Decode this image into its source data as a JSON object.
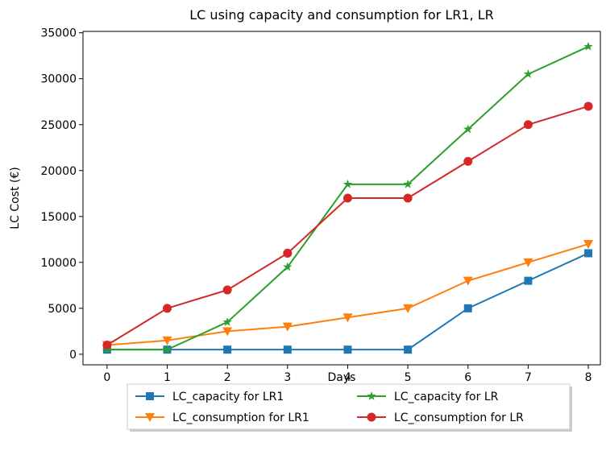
{
  "chart_data": {
    "type": "line",
    "title": "LC using capacity and consumption for LR1, LR",
    "x_label": "Days",
    "y_label": "LC Cost (€)",
    "x": [
      0,
      1,
      2,
      3,
      4,
      5,
      6,
      7,
      8
    ],
    "series": [
      {
        "name": "LC_capacity for LR1",
        "color": "#1f77b4",
        "marker": "square",
        "values": [
          500,
          500,
          500,
          500,
          500,
          500,
          5000,
          8000,
          11000
        ]
      },
      {
        "name": "LC_consumption for LR1",
        "color": "#ff7f0e",
        "marker": "triangle-down",
        "values": [
          1000,
          1500,
          2500,
          3000,
          4000,
          5000,
          8000,
          10000,
          12000
        ]
      },
      {
        "name": "LC_capacity for LR",
        "color": "#2ca02c",
        "marker": "star",
        "values": [
          500,
          500,
          3500,
          9500,
          18500,
          18500,
          24500,
          30500,
          33500
        ]
      },
      {
        "name": "LC_consumption for LR",
        "color": "#d62728",
        "marker": "circle",
        "values": [
          1000,
          5000,
          7000,
          11000,
          17000,
          17000,
          21000,
          25000,
          27000
        ]
      }
    ],
    "xlim": [
      -0.4,
      8.2
    ],
    "xticks": [
      0,
      1,
      2,
      3,
      4,
      5,
      6,
      7,
      8
    ],
    "ylim": [
      -1150,
      35150
    ],
    "yticks": [
      0,
      5000,
      10000,
      15000,
      20000,
      25000,
      30000,
      35000
    ],
    "grid": false,
    "legend_position": "below",
    "legend_columns": 2
  }
}
